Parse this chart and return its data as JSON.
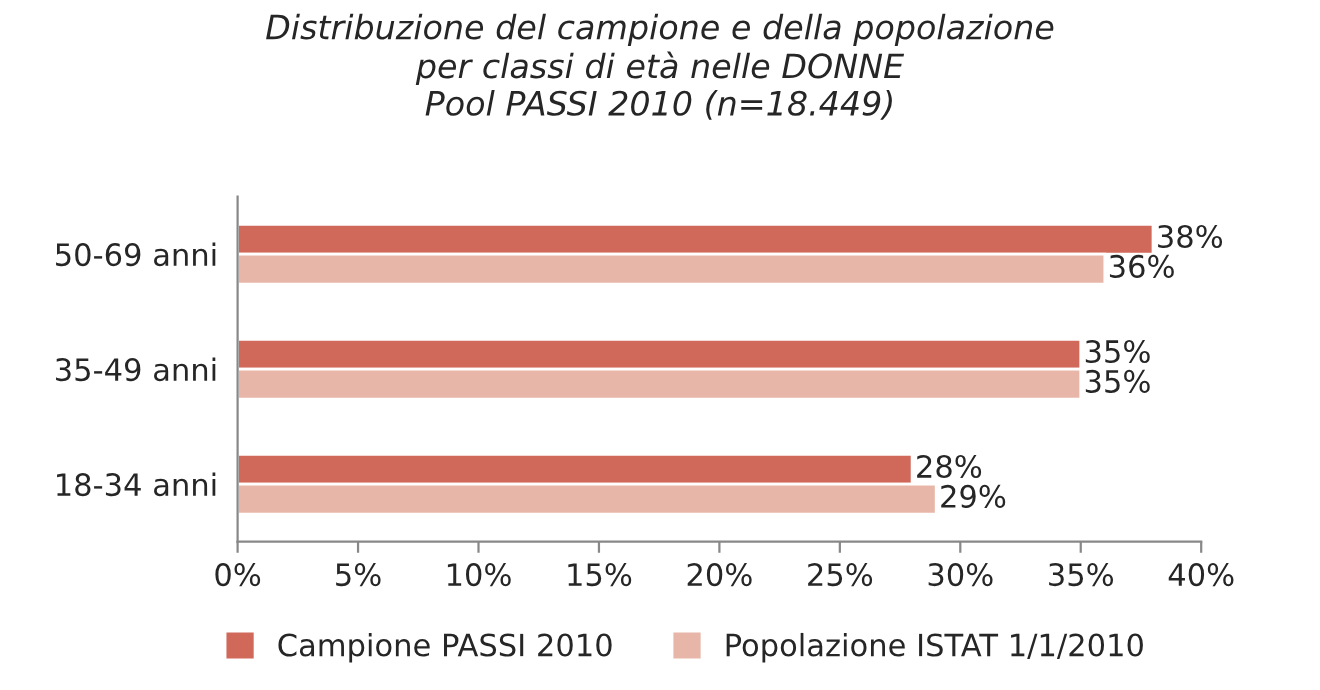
{
  "chart_data": {
    "type": "bar",
    "orientation": "horizontal",
    "title": "Distribuzione del campione e della popolazione\nper classi di età nelle DONNE\nPool PASSI 2010 (n=18.449)",
    "categories": [
      "50-69 anni",
      "35-49 anni",
      "18-34 anni"
    ],
    "series": [
      {
        "name": "Campione PASSI 2010",
        "color": "#d0695a",
        "values": [
          38,
          35,
          28
        ],
        "value_labels": [
          "38%",
          "35%",
          "28%"
        ]
      },
      {
        "name": "Popolazione ISTAT 1/1/2010",
        "color": "#e8b6a8",
        "values": [
          36,
          35,
          29
        ],
        "value_labels": [
          "36%",
          "35%",
          "29%"
        ]
      }
    ],
    "xlim": [
      0,
      40
    ],
    "xticks": [
      {
        "value": 0,
        "label": "0%"
      },
      {
        "value": 5,
        "label": "5%"
      },
      {
        "value": 10,
        "label": "10%"
      },
      {
        "value": 15,
        "label": "15%"
      },
      {
        "value": 20,
        "label": "20%"
      },
      {
        "value": 25,
        "label": "25%"
      },
      {
        "value": 30,
        "label": "30%"
      },
      {
        "value": 35,
        "label": "35%"
      },
      {
        "value": 40,
        "label": "40%"
      }
    ],
    "grid": false,
    "legend": "bottom"
  }
}
